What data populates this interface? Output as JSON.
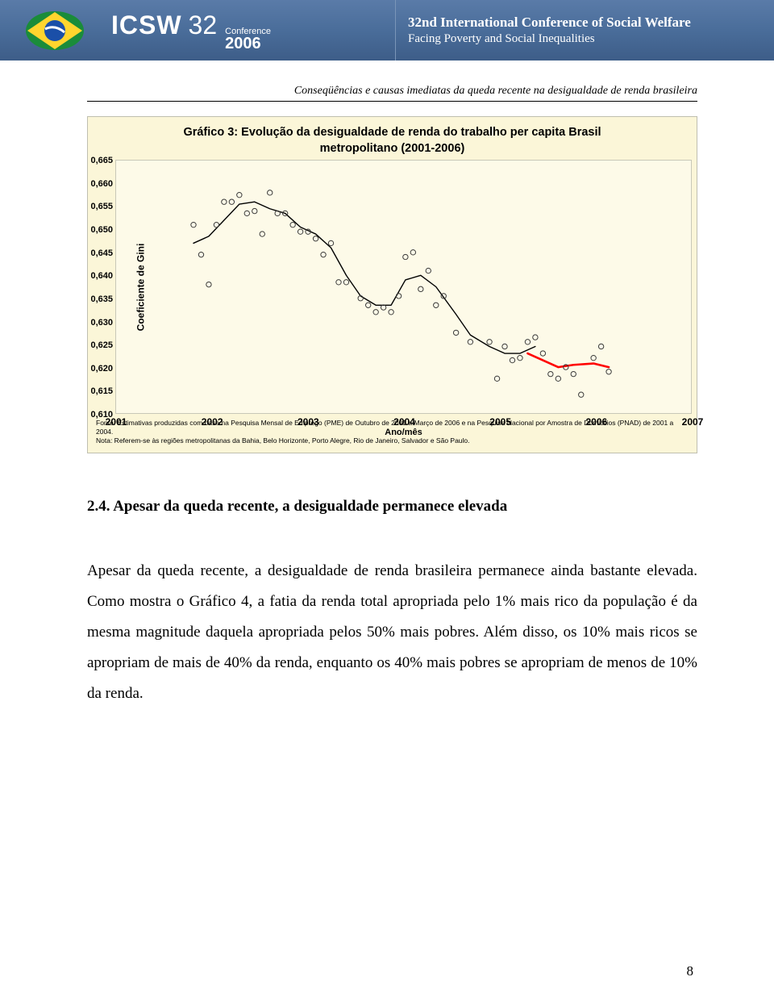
{
  "banner": {
    "org": "ICSW",
    "num": "32",
    "conf_label": "Conference",
    "year": "2006",
    "right_line1": "32nd International Conference of Social Welfare",
    "right_line2": "Facing Poverty and Social Inequalities",
    "logo_colors": {
      "green": "#1a8c3a",
      "yellow": "#ffd52e",
      "blue": "#1a4fa8",
      "white": "#ffffff"
    }
  },
  "running_head": "Conseqüências e causas imediatas da queda recente na desigualdade de renda brasileira",
  "chart": {
    "title_line1": "Gráfico 3: Evolução da desigualdade de renda do trabalho per capita Brasil",
    "title_line2": "metropolitano (2001-2006)",
    "y_axis_label": "Coeficiente de Gini",
    "x_axis_label": "Ano/mês",
    "panel_bg": "#fbf6d8",
    "plot_bg": "#fdfae8",
    "y_min": 0.61,
    "y_max": 0.665,
    "y_step": 0.005,
    "y_ticks": [
      "0,610",
      "0,615",
      "0,620",
      "0,625",
      "0,630",
      "0,635",
      "0,640",
      "0,645",
      "0,650",
      "0,655",
      "0,660",
      "0,665"
    ],
    "x_min": 2001,
    "x_max": 2007,
    "x_ticks": [
      "2001",
      "2002",
      "2003",
      "2004",
      "2005",
      "2006",
      "2007"
    ],
    "marker_stroke": "#3a3a3a",
    "marker_fill": "none",
    "marker_r": 3.2,
    "line1_color": "#000000",
    "line1_width": 1.4,
    "line2_color": "#ff0000",
    "line2_width": 2.6,
    "points": [
      {
        "x": 2001.8,
        "y": 0.651
      },
      {
        "x": 2001.88,
        "y": 0.6445
      },
      {
        "x": 2001.96,
        "y": 0.638
      },
      {
        "x": 2002.04,
        "y": 0.651
      },
      {
        "x": 2002.12,
        "y": 0.656
      },
      {
        "x": 2002.2,
        "y": 0.656
      },
      {
        "x": 2002.28,
        "y": 0.6575
      },
      {
        "x": 2002.36,
        "y": 0.6535
      },
      {
        "x": 2002.44,
        "y": 0.654
      },
      {
        "x": 2002.52,
        "y": 0.649
      },
      {
        "x": 2002.6,
        "y": 0.658
      },
      {
        "x": 2002.68,
        "y": 0.6535
      },
      {
        "x": 2002.76,
        "y": 0.6535
      },
      {
        "x": 2002.84,
        "y": 0.651
      },
      {
        "x": 2002.92,
        "y": 0.6495
      },
      {
        "x": 2003.0,
        "y": 0.6495
      },
      {
        "x": 2003.08,
        "y": 0.648
      },
      {
        "x": 2003.16,
        "y": 0.6445
      },
      {
        "x": 2003.24,
        "y": 0.647
      },
      {
        "x": 2003.32,
        "y": 0.6385
      },
      {
        "x": 2003.4,
        "y": 0.6385
      },
      {
        "x": 2003.55,
        "y": 0.635
      },
      {
        "x": 2003.63,
        "y": 0.6335
      },
      {
        "x": 2003.71,
        "y": 0.632
      },
      {
        "x": 2003.79,
        "y": 0.633
      },
      {
        "x": 2003.87,
        "y": 0.632
      },
      {
        "x": 2003.95,
        "y": 0.6355
      },
      {
        "x": 2004.02,
        "y": 0.644
      },
      {
        "x": 2004.1,
        "y": 0.645
      },
      {
        "x": 2004.18,
        "y": 0.637
      },
      {
        "x": 2004.26,
        "y": 0.641
      },
      {
        "x": 2004.34,
        "y": 0.6335
      },
      {
        "x": 2004.42,
        "y": 0.6355
      },
      {
        "x": 2004.55,
        "y": 0.6275
      },
      {
        "x": 2004.7,
        "y": 0.6255
      },
      {
        "x": 2004.9,
        "y": 0.6255
      },
      {
        "x": 2004.98,
        "y": 0.6175
      },
      {
        "x": 2005.06,
        "y": 0.6245
      },
      {
        "x": 2005.14,
        "y": 0.6215
      },
      {
        "x": 2005.22,
        "y": 0.622
      },
      {
        "x": 2005.3,
        "y": 0.6255
      },
      {
        "x": 2005.38,
        "y": 0.6265
      },
      {
        "x": 2005.46,
        "y": 0.623
      },
      {
        "x": 2005.54,
        "y": 0.6185
      },
      {
        "x": 2005.62,
        "y": 0.6175
      },
      {
        "x": 2005.7,
        "y": 0.62
      },
      {
        "x": 2005.78,
        "y": 0.6185
      },
      {
        "x": 2005.86,
        "y": 0.614
      },
      {
        "x": 2005.99,
        "y": 0.622
      },
      {
        "x": 2006.07,
        "y": 0.6245
      },
      {
        "x": 2006.15,
        "y": 0.619
      }
    ],
    "line_black": [
      {
        "x": 2001.8,
        "y": 0.647
      },
      {
        "x": 2001.96,
        "y": 0.6485
      },
      {
        "x": 2002.12,
        "y": 0.652
      },
      {
        "x": 2002.28,
        "y": 0.6555
      },
      {
        "x": 2002.44,
        "y": 0.656
      },
      {
        "x": 2002.6,
        "y": 0.6545
      },
      {
        "x": 2002.76,
        "y": 0.6535
      },
      {
        "x": 2002.92,
        "y": 0.6505
      },
      {
        "x": 2003.08,
        "y": 0.649
      },
      {
        "x": 2003.24,
        "y": 0.646
      },
      {
        "x": 2003.4,
        "y": 0.64
      },
      {
        "x": 2003.55,
        "y": 0.6355
      },
      {
        "x": 2003.71,
        "y": 0.6335
      },
      {
        "x": 2003.87,
        "y": 0.6335
      },
      {
        "x": 2004.02,
        "y": 0.639
      },
      {
        "x": 2004.18,
        "y": 0.64
      },
      {
        "x": 2004.34,
        "y": 0.6375
      },
      {
        "x": 2004.55,
        "y": 0.6315
      },
      {
        "x": 2004.7,
        "y": 0.627
      },
      {
        "x": 2004.9,
        "y": 0.6245
      },
      {
        "x": 2005.06,
        "y": 0.623
      },
      {
        "x": 2005.22,
        "y": 0.623
      },
      {
        "x": 2005.38,
        "y": 0.6245
      }
    ],
    "line_red": [
      {
        "x": 2005.3,
        "y": 0.623
      },
      {
        "x": 2005.46,
        "y": 0.6215
      },
      {
        "x": 2005.62,
        "y": 0.62
      },
      {
        "x": 2005.78,
        "y": 0.6205
      },
      {
        "x": 2005.99,
        "y": 0.6208
      },
      {
        "x": 2006.15,
        "y": 0.62
      }
    ]
  },
  "source": {
    "line1": "Fonte: Estimativas produzidas com base na Pesquisa Mensal de Emprego (PME) de Outubro de 2001 a Março de 2006 e na Pesquisa Nacional por Amostra de Domicílios (PNAD) de 2001 a 2004.",
    "line2": "Nota: Referem-se às regiões metropolitanas da Bahia, Belo Horizonte, Porto Alegre, Rio de Janeiro, Salvador e São Paulo."
  },
  "section": {
    "heading": "2.4. Apesar da queda recente, a desigualdade permanece elevada",
    "paragraph": "Apesar da queda recente, a desigualdade de renda brasileira permanece ainda bastante elevada. Como mostra o Gráfico 4, a fatia da renda total apropriada pelo 1% mais rico da população é da mesma magnitude daquela apropriada pelos 50% mais pobres. Além disso, os 10% mais ricos se apropriam de mais de 40% da renda, enquanto os 40% mais pobres se apropriam de menos de 10% da renda."
  },
  "page_number": "8"
}
